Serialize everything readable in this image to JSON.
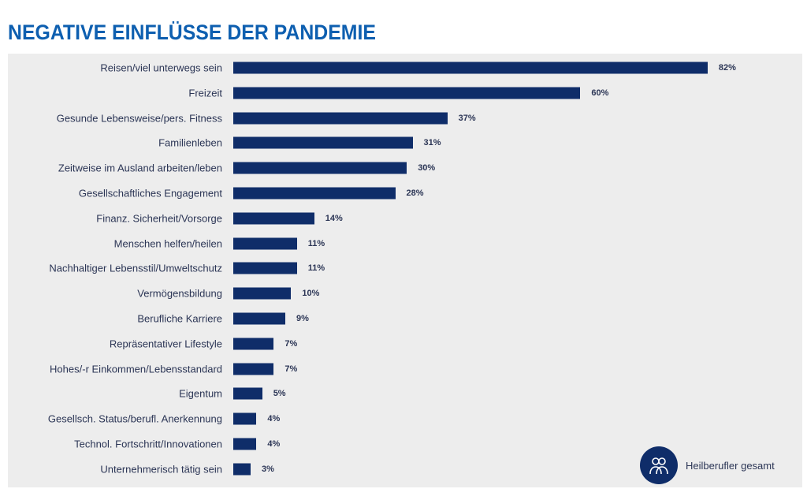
{
  "chart_data": {
    "type": "bar",
    "orientation": "horizontal",
    "title": "NEGATIVE EINFLÜSSE DER PANDEMIE",
    "categories": [
      "Reisen/viel unterwegs sein",
      "Freizeit",
      "Gesunde Lebensweise/pers. Fitness",
      "Familienleben",
      "Zeitweise im Ausland arbeiten/leben",
      "Gesellschaftliches Engagement",
      "Finanz. Sicherheit/Vorsorge",
      "Menschen helfen/heilen",
      "Nachhaltiger Lebensstil/Umweltschutz",
      "Vermögensbildung",
      "Berufliche Karriere",
      "Repräsentativer Lifestyle",
      "Hohes/-r Einkommen/Lebensstandard",
      "Eigentum",
      "Gesellsch. Status/berufl. Anerkennung",
      "Technol. Fortschritt/Innovationen",
      "Unternehmerisch tätig sein"
    ],
    "values": [
      82,
      60,
      37,
      31,
      30,
      28,
      14,
      11,
      11,
      10,
      9,
      7,
      7,
      5,
      4,
      4,
      3
    ],
    "value_suffix": "%",
    "legend": [
      "Heilberufler gesamt"
    ],
    "legend_position": "bottom-right",
    "color": "#0f2d69",
    "xlim": [
      0,
      100
    ]
  }
}
